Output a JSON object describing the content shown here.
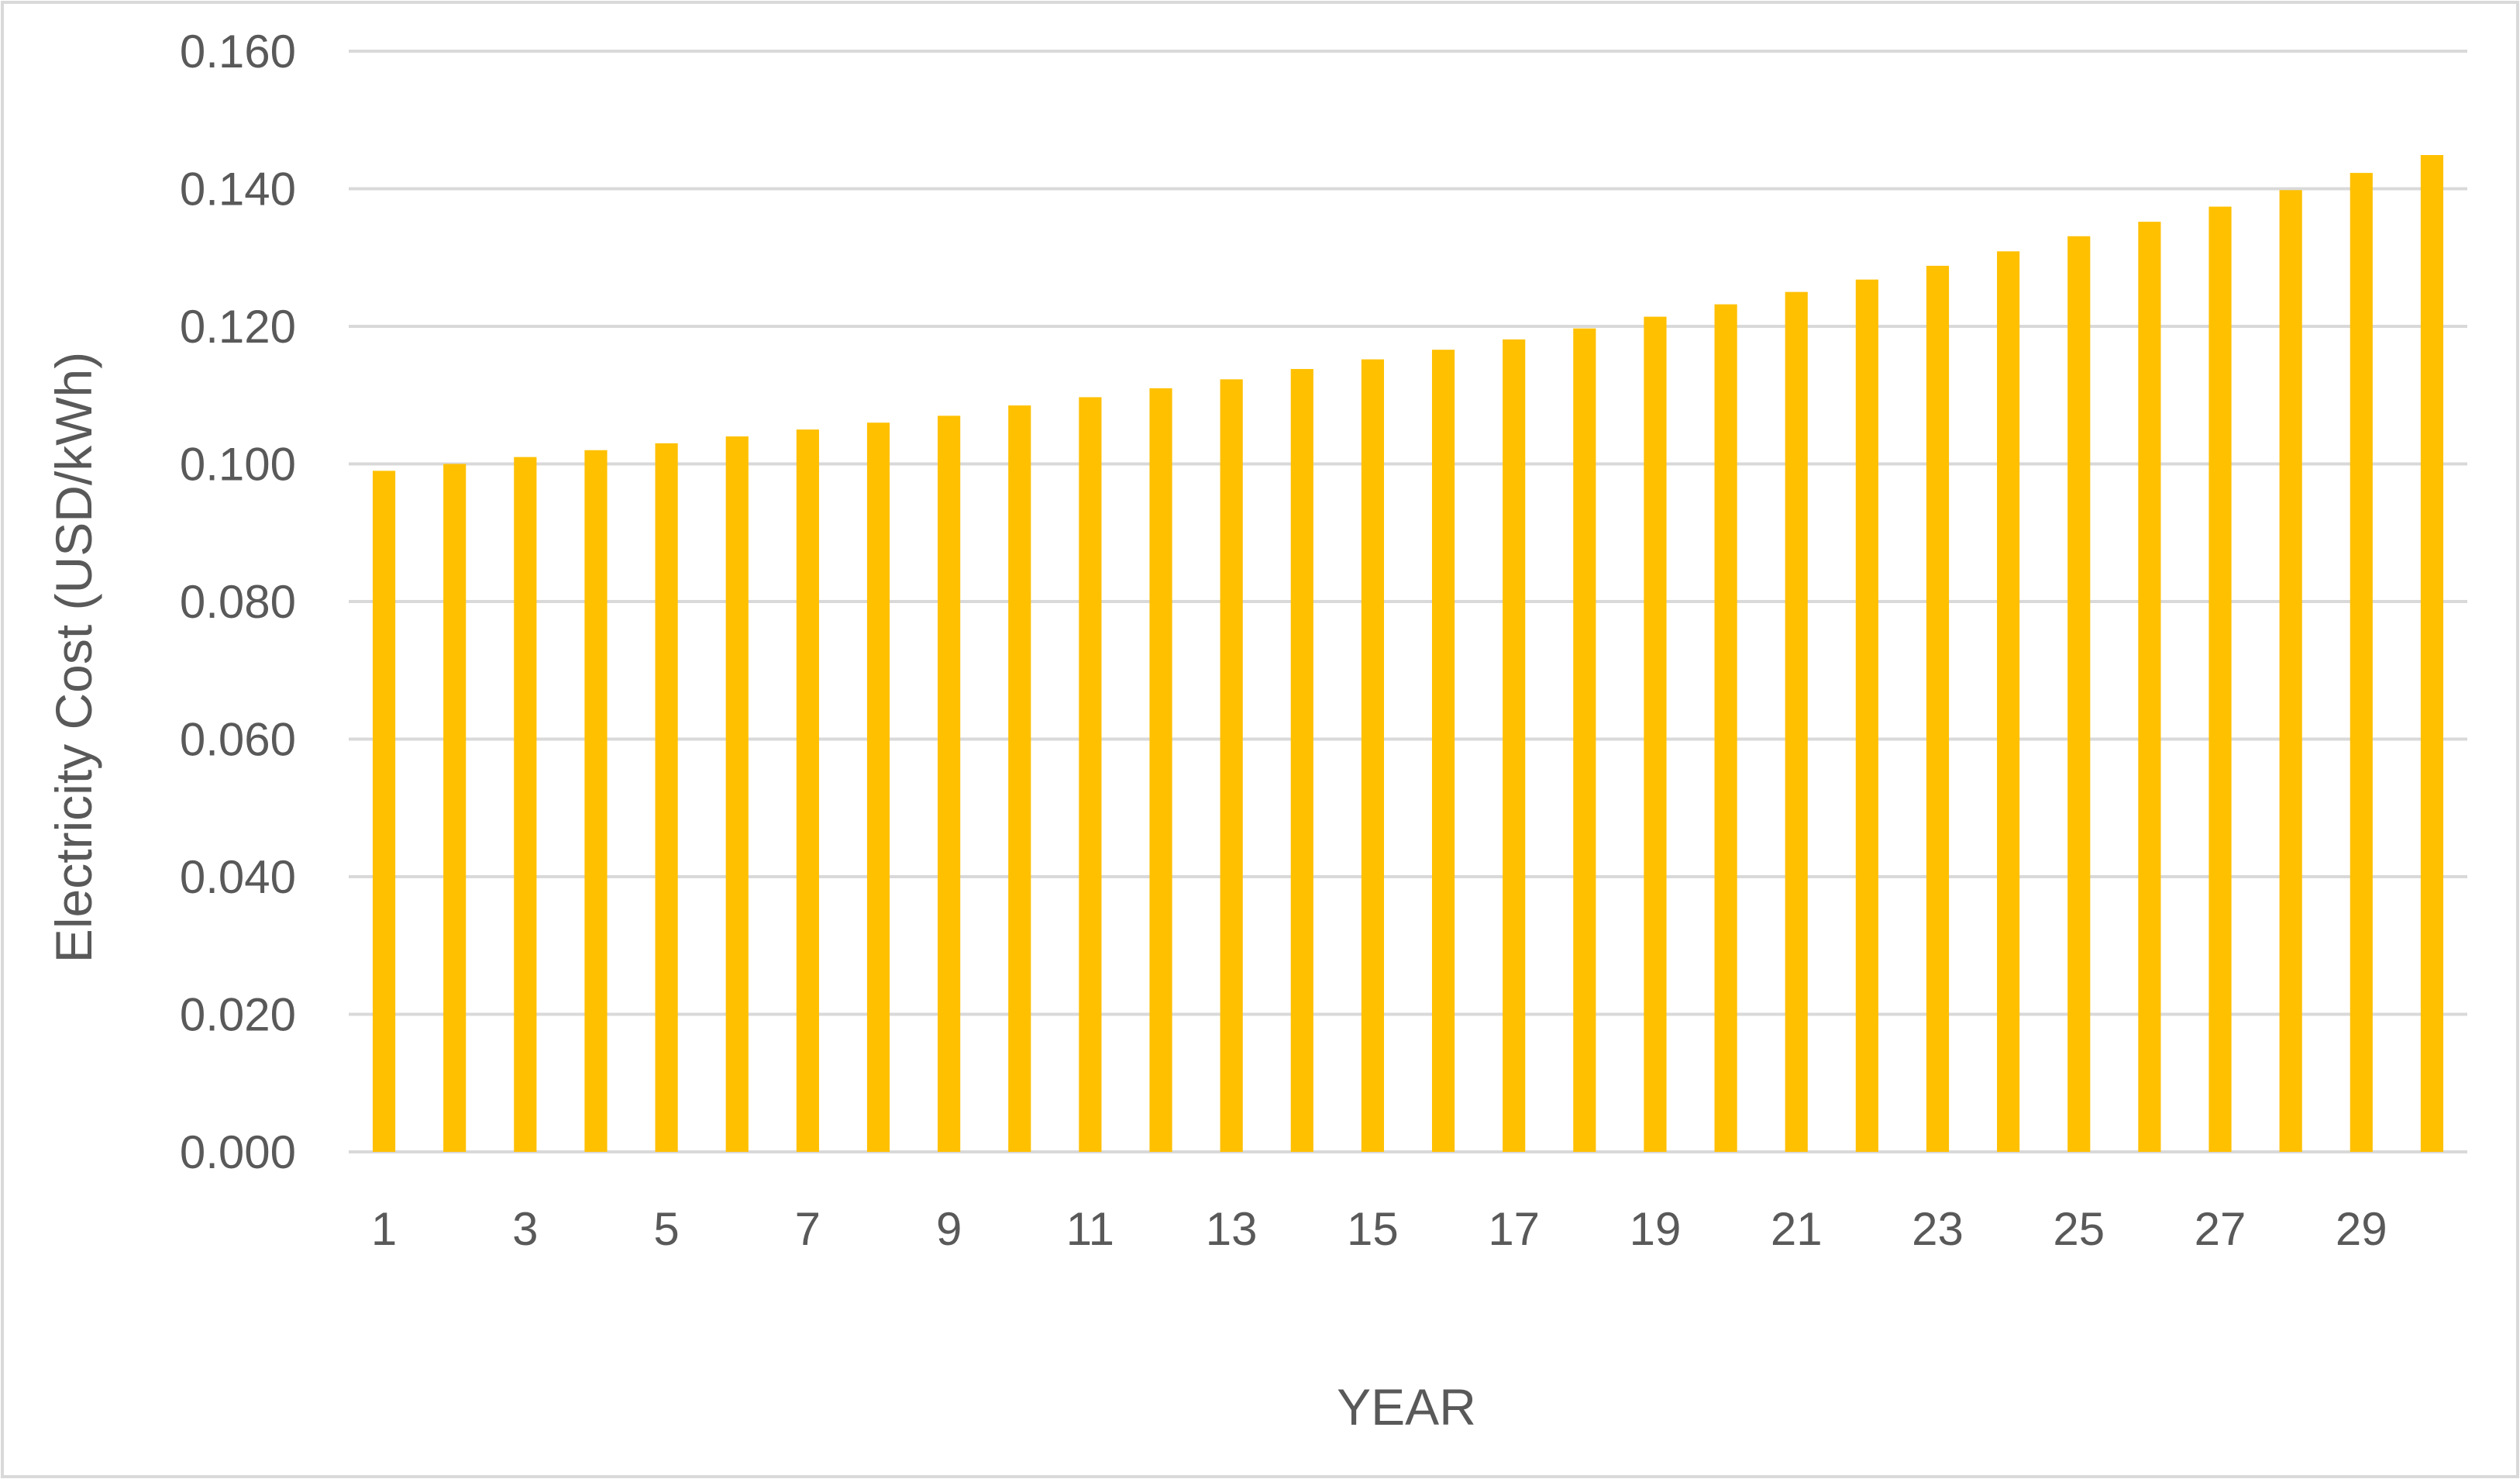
{
  "chart_data": {
    "type": "bar",
    "title": "",
    "xlabel": "YEAR",
    "ylabel": "Electricity Cost (USD/kWh)",
    "ylim": [
      0,
      0.16
    ],
    "yticks": [
      "0.000",
      "0.020",
      "0.040",
      "0.060",
      "0.080",
      "0.100",
      "0.120",
      "0.140",
      "0.160"
    ],
    "xtick_labels": [
      "1",
      "3",
      "5",
      "7",
      "9",
      "11",
      "13",
      "15",
      "17",
      "19",
      "21",
      "23",
      "25",
      "27",
      "29"
    ],
    "categories": [
      1,
      2,
      3,
      4,
      5,
      6,
      7,
      8,
      9,
      10,
      11,
      12,
      13,
      14,
      15,
      16,
      17,
      18,
      19,
      20,
      21,
      22,
      23,
      24,
      25,
      26,
      27,
      28,
      29,
      30
    ],
    "values": [
      0.099,
      0.1,
      0.101,
      0.102,
      0.103,
      0.104,
      0.105,
      0.106,
      0.107,
      0.1085,
      0.1097,
      0.111,
      0.1123,
      0.1138,
      0.1152,
      0.1166,
      0.1181,
      0.1197,
      0.1214,
      0.1232,
      0.125,
      0.1268,
      0.1288,
      0.1309,
      0.1331,
      0.1352,
      0.1374,
      0.1398,
      0.1423,
      0.1449
    ],
    "grid": true,
    "legend": "none",
    "bar_color": "#FFC000",
    "grid_color": "#D9D9D9",
    "text_color": "#595959"
  }
}
